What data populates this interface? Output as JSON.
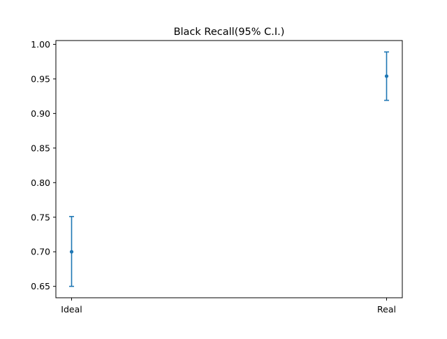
{
  "chart_data": {
    "type": "errorbar",
    "title": "Black Recall(95% C.I.)",
    "xlabel": "",
    "ylabel": "",
    "categories": [
      "Ideal",
      "Real"
    ],
    "series": [
      {
        "values": [
          0.7,
          0.954
        ],
        "lower": [
          0.65,
          0.919
        ],
        "upper": [
          0.751,
          0.989
        ]
      }
    ],
    "ylim": [
      0.6335,
      1.0055
    ],
    "yticks": [
      "0.65",
      "0.70",
      "0.75",
      "0.80",
      "0.85",
      "0.90",
      "0.95",
      "1.00"
    ],
    "grid": false,
    "legend": "none",
    "color": "#1f77b4"
  }
}
